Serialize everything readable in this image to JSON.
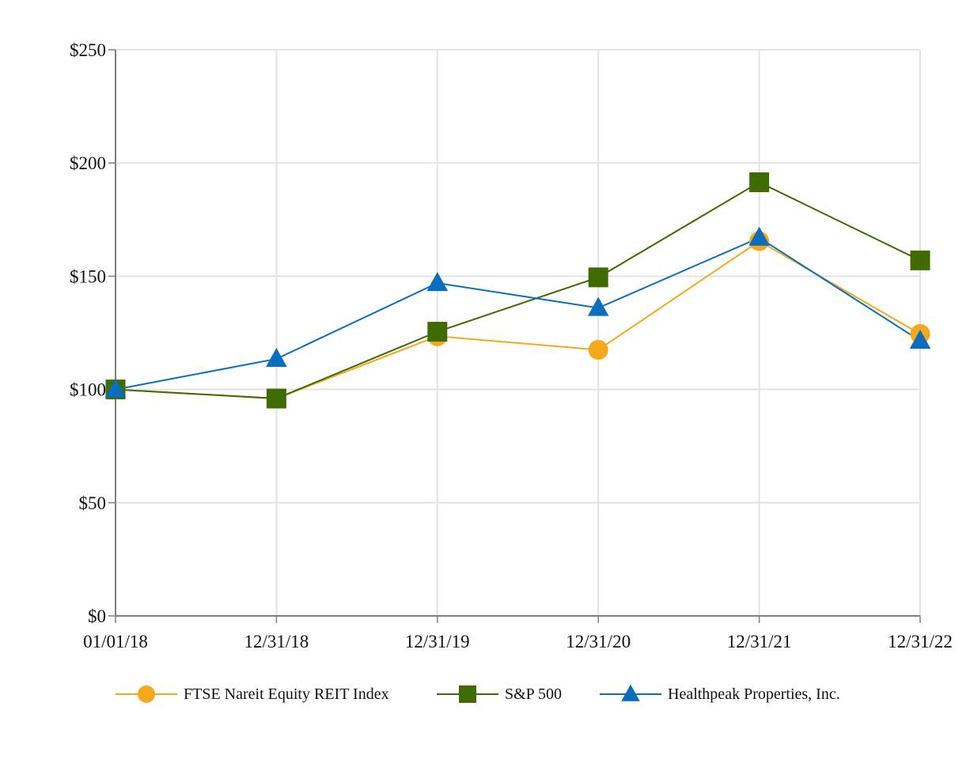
{
  "chart_data": {
    "type": "line",
    "title": "",
    "xlabel": "",
    "ylabel": "",
    "categories": [
      "01/01/18",
      "12/31/18",
      "12/31/19",
      "12/31/20",
      "12/31/21",
      "12/31/22"
    ],
    "ylim": [
      0,
      250
    ],
    "y_ticks": [
      0,
      50,
      100,
      150,
      200,
      250
    ],
    "y_tick_labels": [
      "$0",
      "$50",
      "$100",
      "$150",
      "$200",
      "$250"
    ],
    "grid": true,
    "legend_position": "bottom",
    "series": [
      {
        "name": "FTSE Nareit Equity REIT Index",
        "color": "#F5A81C",
        "marker": "circle",
        "values": [
          100,
          96,
          123.5,
          117.5,
          165.5,
          124.5
        ]
      },
      {
        "name": "S&P 500",
        "color": "#3F6B00",
        "marker": "square",
        "values": [
          100,
          96,
          125.5,
          149.5,
          191.5,
          157
        ]
      },
      {
        "name": "Healthpeak Properties, Inc.",
        "color": "#0A6EBD",
        "marker": "triangle",
        "values": [
          100,
          113.5,
          147,
          136,
          167,
          121.5
        ]
      }
    ]
  }
}
